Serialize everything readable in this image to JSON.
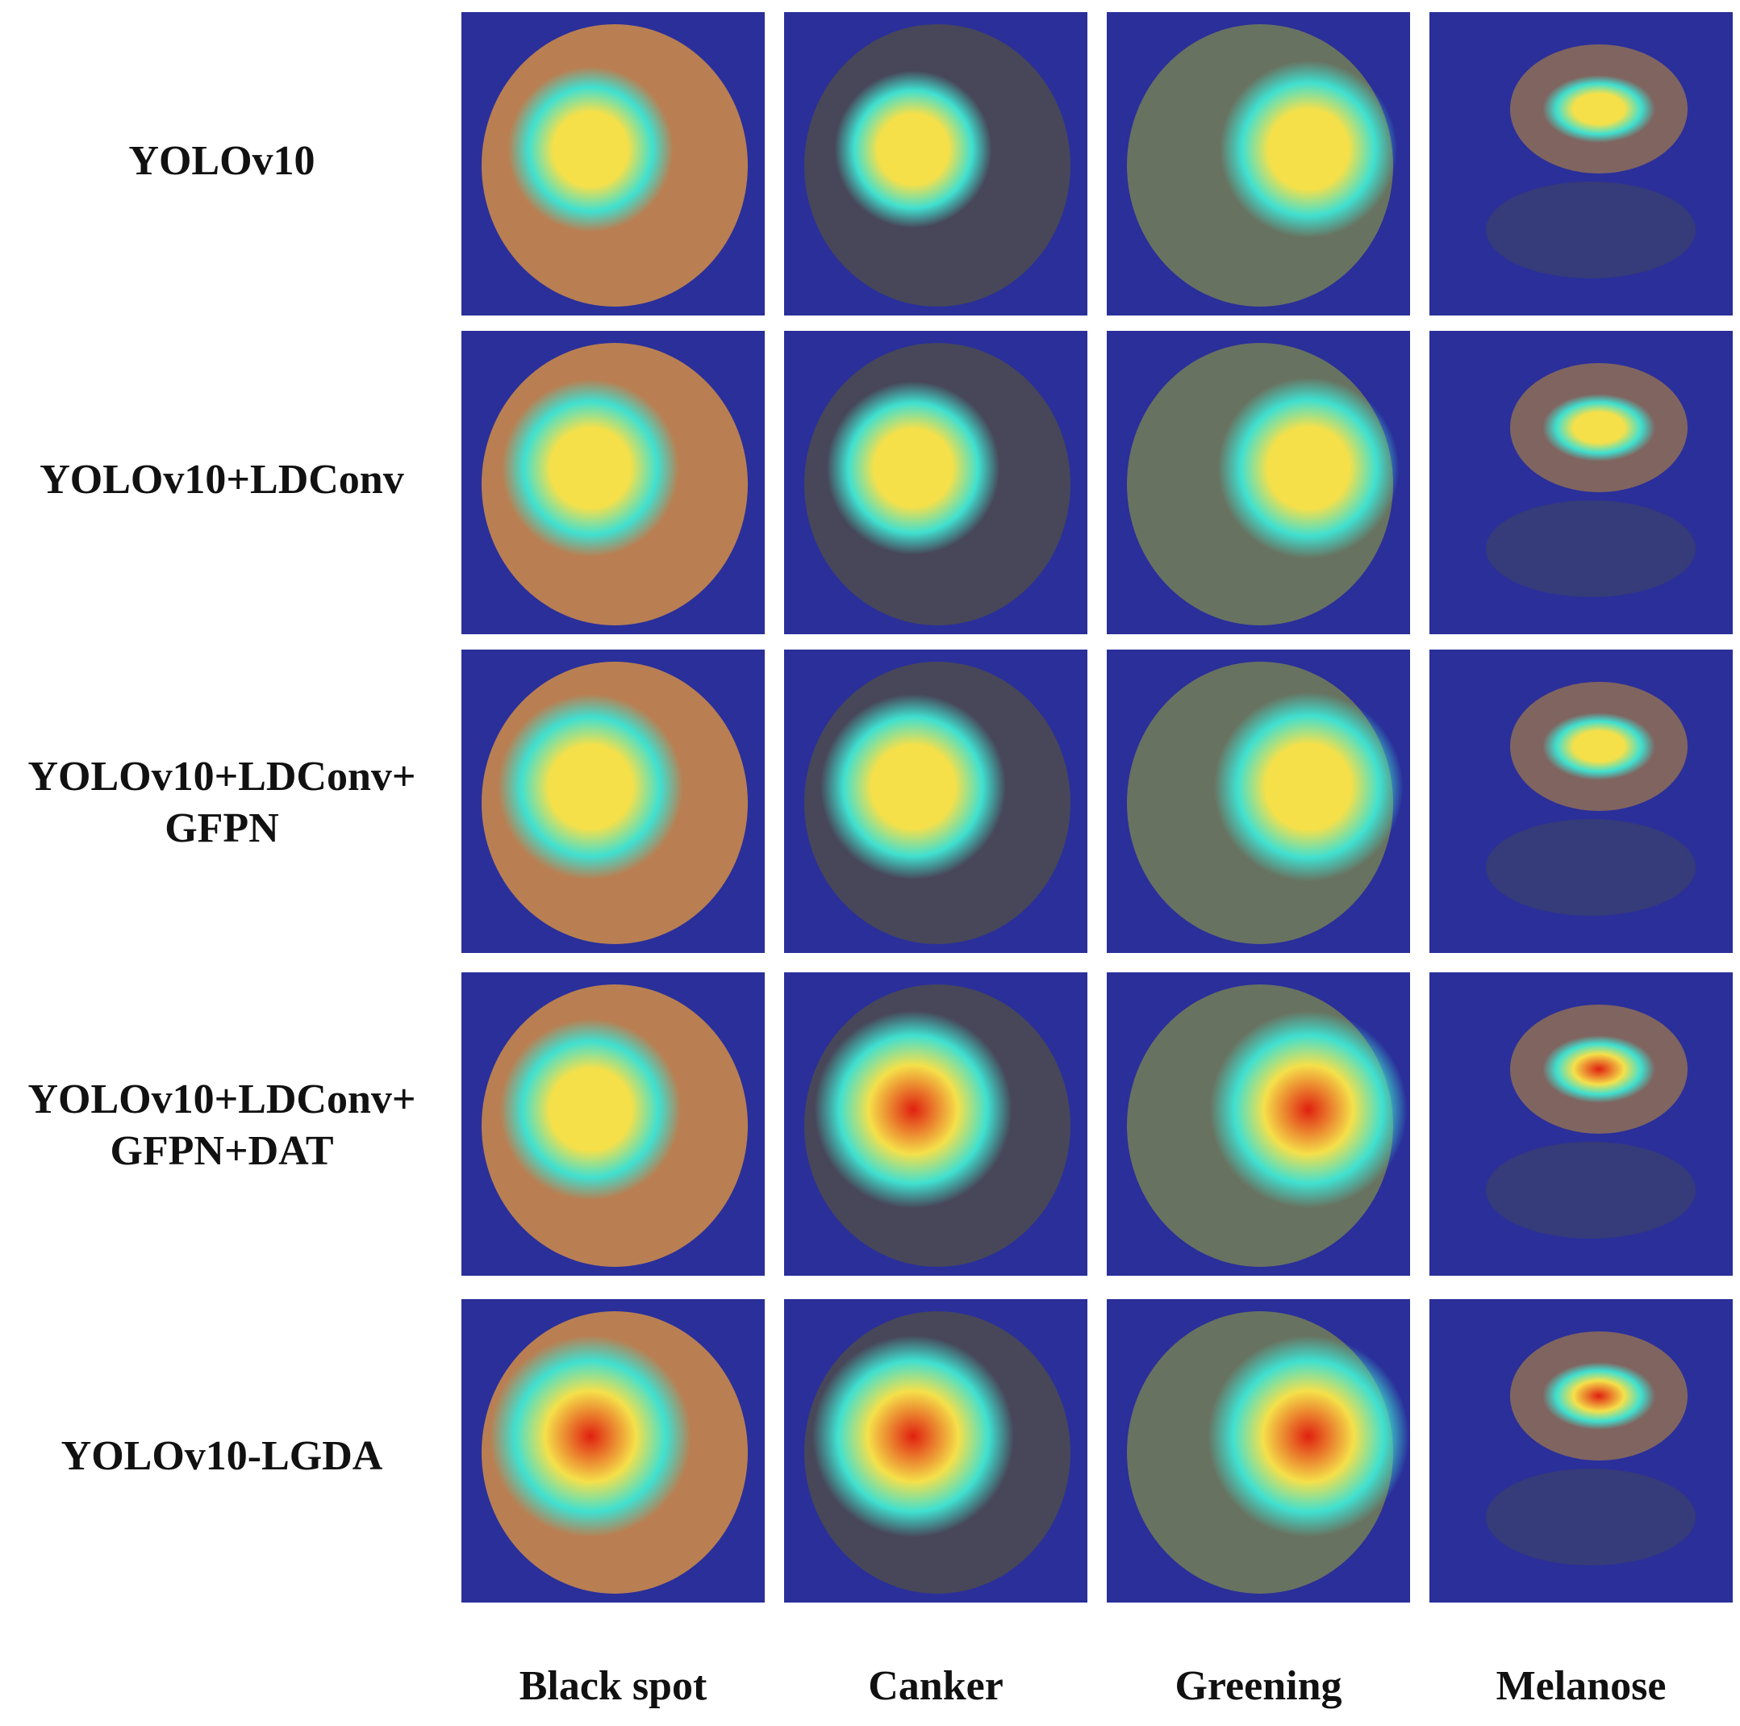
{
  "figure": {
    "row_labels": [
      [
        "YOLOv10"
      ],
      [
        "YOLOv10+LDConv"
      ],
      [
        "YOLOv10+LDConv+",
        "GFPN"
      ],
      [
        "YOLOv10+LDConv+",
        "GFPN+DAT"
      ],
      [
        "YOLOv10-LGDA"
      ]
    ],
    "column_labels": [
      "Black spot",
      "Canker",
      "Greening",
      "Melanose"
    ],
    "colors": {
      "background_blue": "#2a2f9a",
      "fruit_orange": "#c9884a",
      "fruit_dark": "#4a4a52",
      "fruit_green": "#6f7a5a",
      "heat_cyan": "#40e0d0",
      "heat_yellow": "#f5e04a",
      "heat_red": "#e02010"
    },
    "cells": [
      [
        {
          "intensity": 0.45
        },
        {
          "intensity": 0.35
        },
        {
          "intensity": 0.6
        },
        {
          "intensity": 0.4
        }
      ],
      [
        {
          "intensity": 0.6
        },
        {
          "intensity": 0.55
        },
        {
          "intensity": 0.65
        },
        {
          "intensity": 0.55
        }
      ],
      [
        {
          "intensity": 0.7
        },
        {
          "intensity": 0.7
        },
        {
          "intensity": 0.75
        },
        {
          "intensity": 0.55
        }
      ],
      [
        {
          "intensity": 0.65
        },
        {
          "intensity": 0.85
        },
        {
          "intensity": 0.85
        },
        {
          "intensity": 0.9
        }
      ],
      [
        {
          "intensity": 0.9
        },
        {
          "intensity": 0.9
        },
        {
          "intensity": 0.9
        },
        {
          "intensity": 0.95
        }
      ]
    ]
  }
}
